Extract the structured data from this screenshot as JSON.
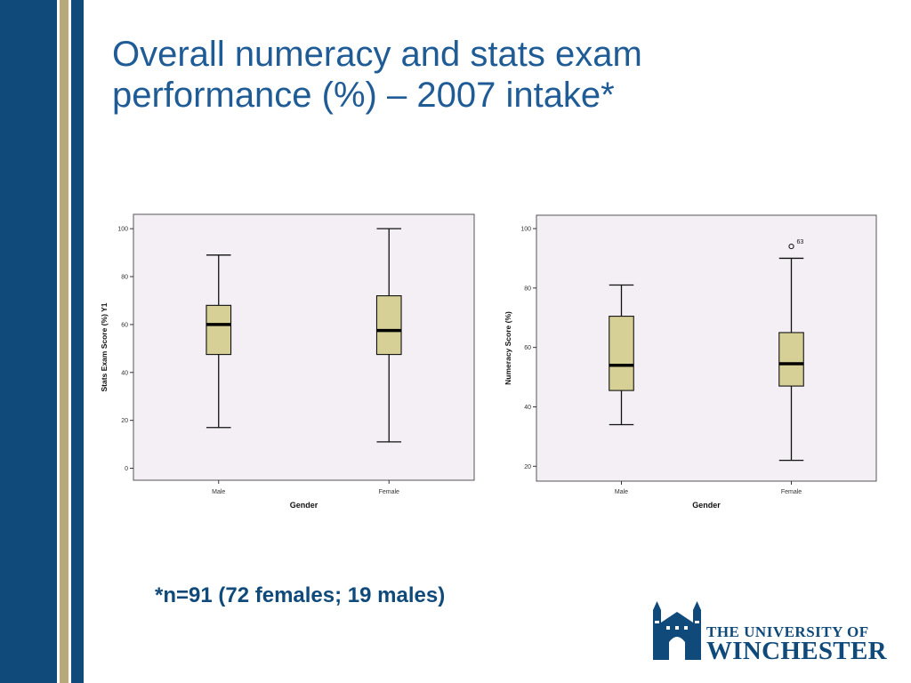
{
  "slide": {
    "title_line1": "Overall numeracy and stats exam",
    "title_line2": "performance (%) – 2007 intake*",
    "footnote": "*n=91 (72 females; 19 males)",
    "colors": {
      "navy": "#0f4a7a",
      "tan": "#b8a97a",
      "title": "#1f5c96",
      "plot_bg": "#f3eff4",
      "box_fill": "#d6d096"
    }
  },
  "logo": {
    "line1": "THE UNIVERSITY OF",
    "line2": "WINCHESTER",
    "icon": "cathedral-icon"
  },
  "chart_data": [
    {
      "type": "boxplot",
      "xlabel": "Gender",
      "ylabel": "Stats Exam Score (%) Y1",
      "ylim": [
        -5,
        106
      ],
      "yticks": [
        0,
        20,
        40,
        60,
        80,
        100
      ],
      "categories": [
        "Male",
        "Female"
      ],
      "boxes": [
        {
          "category": "Male",
          "min": 17,
          "q1": 47.5,
          "median": 60,
          "q3": 68,
          "max": 89
        },
        {
          "category": "Female",
          "min": 11,
          "q1": 47.5,
          "median": 57.5,
          "q3": 72,
          "max": 100
        }
      ],
      "outliers": []
    },
    {
      "type": "boxplot",
      "xlabel": "Gender",
      "ylabel": "Numeracy Score (%)",
      "ylim": [
        15,
        104.5
      ],
      "yticks": [
        20,
        40,
        60,
        80,
        100
      ],
      "categories": [
        "Male",
        "Female"
      ],
      "boxes": [
        {
          "category": "Male",
          "min": 34,
          "q1": 45.5,
          "median": 54,
          "q3": 70.5,
          "max": 81
        },
        {
          "category": "Female",
          "min": 22,
          "q1": 47,
          "median": 54.5,
          "q3": 65,
          "max": 90
        }
      ],
      "outliers": [
        {
          "category": "Female",
          "value": 94,
          "label": "63"
        }
      ]
    }
  ]
}
